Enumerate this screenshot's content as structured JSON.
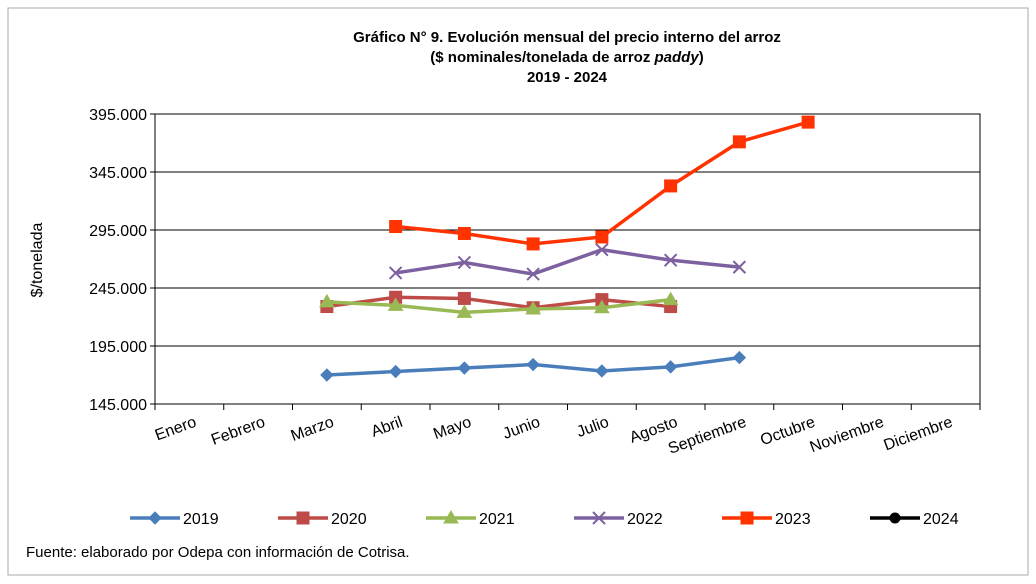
{
  "chart_data": {
    "type": "line",
    "title": "Gráfico N° 9. Evolución mensual del precio interno del arroz",
    "subtitle": [
      "($ nominales/tonelada de arroz ",
      "paddy",
      ")"
    ],
    "period": "2019 - 2024",
    "y_label": "$/tonelada",
    "source": "Fuente: elaborado por Odepa con información de Cotrisa.",
    "categories": [
      "Enero",
      "Febrero",
      "Marzo",
      "Abril",
      "Mayo",
      "Junio",
      "Julio",
      "Agosto",
      "Septiembre",
      "Octubre",
      "Noviembre",
      "Diciembre"
    ],
    "ylim": [
      145000,
      395000
    ],
    "yticks": [
      {
        "value": 145000,
        "label": "145.000"
      },
      {
        "value": 195000,
        "label": "195.000"
      },
      {
        "value": 245000,
        "label": "245.000"
      },
      {
        "value": 295000,
        "label": "295.000"
      },
      {
        "value": 345000,
        "label": "345.000"
      },
      {
        "value": 395000,
        "label": "395.000"
      }
    ],
    "grid": true,
    "legend": "bottom",
    "series": [
      {
        "name": "2019",
        "color": "#4a7ebb",
        "marker": "diamond",
        "values": [
          null,
          null,
          170000,
          173000,
          176000,
          179000,
          173500,
          177000,
          185000,
          null,
          null,
          null
        ]
      },
      {
        "name": "2020",
        "color": "#be4b48",
        "marker": "square",
        "values": [
          null,
          null,
          229000,
          237000,
          236000,
          228000,
          235000,
          229000,
          null,
          null,
          null,
          null
        ]
      },
      {
        "name": "2021",
        "color": "#98b954",
        "marker": "triangle",
        "values": [
          null,
          null,
          233000,
          230000,
          224000,
          227000,
          228000,
          235000,
          null,
          null,
          null,
          null
        ]
      },
      {
        "name": "2022",
        "color": "#7d60a0",
        "marker": "x",
        "values": [
          null,
          null,
          null,
          258000,
          267000,
          257000,
          278000,
          269000,
          263000,
          null,
          null,
          null
        ]
      },
      {
        "name": "2023",
        "color": "#ff3300",
        "marker": "square",
        "values": [
          null,
          null,
          null,
          298000,
          292000,
          283000,
          289000,
          333000,
          371000,
          388000,
          null,
          null
        ]
      },
      {
        "name": "2024",
        "color": "#000000",
        "marker": "circle",
        "values": [
          null,
          null,
          null,
          null,
          null,
          null,
          null,
          null,
          null,
          null,
          null,
          null
        ]
      }
    ]
  }
}
